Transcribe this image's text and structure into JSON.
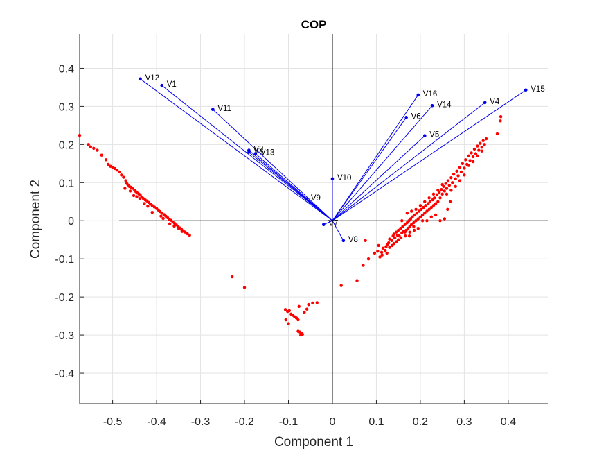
{
  "colors": {
    "vector": "#0000ee",
    "observation": "#ff0000",
    "axis": "#262626",
    "grid": "#e3e3e3",
    "zero_line": "#000000"
  },
  "chart_data": {
    "type": "scatter",
    "title": "COP",
    "xlabel": "Component 1",
    "ylabel": "Component 2",
    "xlim": [
      -0.575,
      0.49
    ],
    "ylim": [
      -0.48,
      0.49
    ],
    "grid": true,
    "xticks": [
      -0.5,
      -0.4,
      -0.3,
      -0.2,
      -0.1,
      0,
      0.1,
      0.2,
      0.3,
      0.4
    ],
    "xtick_labels": [
      "-0.5",
      "-0.4",
      "-0.3",
      "-0.2",
      "-0.1",
      "0",
      "0.1",
      "0.2",
      "0.3",
      "0.4"
    ],
    "yticks": [
      0.4,
      0.3,
      0.2,
      0.1,
      0,
      -0.1,
      -0.2,
      -0.3,
      -0.4
    ],
    "ytick_labels": [
      "0.4",
      "0.3",
      "0.2",
      "0.1",
      "0",
      "-0.1",
      "-0.2",
      "-0.3",
      "-0.4"
    ],
    "vectors": [
      {
        "name": "V1",
        "x": -0.388,
        "y": 0.355
      },
      {
        "name": "V2",
        "x": -0.19,
        "y": 0.185
      },
      {
        "name": "V3",
        "x": -0.19,
        "y": 0.18
      },
      {
        "name": "V4",
        "x": 0.347,
        "y": 0.31
      },
      {
        "name": "V5",
        "x": 0.21,
        "y": 0.223
      },
      {
        "name": "V6",
        "x": 0.168,
        "y": 0.271
      },
      {
        "name": "V7",
        "x": -0.02,
        "y": -0.01
      },
      {
        "name": "V8",
        "x": 0.025,
        "y": -0.052
      },
      {
        "name": "V9",
        "x": -0.06,
        "y": 0.057
      },
      {
        "name": "V10",
        "x": 0.0,
        "y": 0.11
      },
      {
        "name": "V11",
        "x": -0.272,
        "y": 0.292
      },
      {
        "name": "V12",
        "x": -0.437,
        "y": 0.372
      },
      {
        "name": "V13",
        "x": -0.175,
        "y": 0.176
      },
      {
        "name": "V14",
        "x": 0.227,
        "y": 0.302
      },
      {
        "name": "V15",
        "x": 0.44,
        "y": 0.343
      },
      {
        "name": "V16",
        "x": 0.195,
        "y": 0.33
      }
    ],
    "observations": [
      [
        -0.575,
        0.224
      ],
      [
        -0.555,
        0.2
      ],
      [
        -0.55,
        0.194
      ],
      [
        -0.543,
        0.19
      ],
      [
        -0.535,
        0.185
      ],
      [
        -0.525,
        0.172
      ],
      [
        -0.515,
        0.16
      ],
      [
        -0.51,
        0.148
      ],
      [
        -0.505,
        0.143
      ],
      [
        -0.5,
        0.14
      ],
      [
        -0.495,
        0.137
      ],
      [
        -0.49,
        0.133
      ],
      [
        -0.485,
        0.128
      ],
      [
        -0.48,
        0.12
      ],
      [
        -0.475,
        0.114
      ],
      [
        -0.47,
        0.105
      ],
      [
        -0.468,
        0.098
      ],
      [
        -0.465,
        0.094
      ],
      [
        -0.462,
        0.09
      ],
      [
        -0.458,
        0.088
      ],
      [
        -0.455,
        0.085
      ],
      [
        -0.45,
        0.08
      ],
      [
        -0.447,
        0.076
      ],
      [
        -0.444,
        0.073
      ],
      [
        -0.44,
        0.07
      ],
      [
        -0.437,
        0.067
      ],
      [
        -0.433,
        0.062
      ],
      [
        -0.43,
        0.058
      ],
      [
        -0.426,
        0.055
      ],
      [
        -0.422,
        0.052
      ],
      [
        -0.418,
        0.048
      ],
      [
        -0.414,
        0.044
      ],
      [
        -0.41,
        0.04
      ],
      [
        -0.405,
        0.036
      ],
      [
        -0.4,
        0.032
      ],
      [
        -0.396,
        0.028
      ],
      [
        -0.392,
        0.024
      ],
      [
        -0.388,
        0.02
      ],
      [
        -0.383,
        0.016
      ],
      [
        -0.379,
        0.012
      ],
      [
        -0.375,
        0.008
      ],
      [
        -0.371,
        0.004
      ],
      [
        -0.367,
        0.001
      ],
      [
        -0.363,
        -0.003
      ],
      [
        -0.359,
        -0.007
      ],
      [
        -0.355,
        -0.011
      ],
      [
        -0.351,
        -0.015
      ],
      [
        -0.347,
        -0.019
      ],
      [
        -0.343,
        -0.023
      ],
      [
        -0.339,
        -0.027
      ],
      [
        -0.335,
        -0.03
      ],
      [
        -0.33,
        -0.034
      ],
      [
        -0.325,
        -0.038
      ],
      [
        -0.472,
        0.085
      ],
      [
        -0.46,
        0.078
      ],
      [
        -0.452,
        0.066
      ],
      [
        -0.445,
        0.063
      ],
      [
        -0.438,
        0.058
      ],
      [
        -0.428,
        0.045
      ],
      [
        -0.42,
        0.038
      ],
      [
        -0.41,
        0.022
      ],
      [
        -0.39,
        0.012
      ],
      [
        -0.385,
        0.006
      ],
      [
        -0.37,
        -0.008
      ],
      [
        -0.36,
        -0.014
      ],
      [
        -0.35,
        -0.02
      ],
      [
        -0.342,
        -0.028
      ],
      [
        -0.228,
        -0.147
      ],
      [
        -0.2,
        -0.175
      ],
      [
        -0.107,
        -0.233
      ],
      [
        -0.102,
        -0.238
      ],
      [
        -0.098,
        -0.236
      ],
      [
        -0.094,
        -0.245
      ],
      [
        -0.09,
        -0.248
      ],
      [
        -0.086,
        -0.252
      ],
      [
        -0.082,
        -0.255
      ],
      [
        -0.078,
        -0.26
      ],
      [
        -0.106,
        -0.26
      ],
      [
        -0.1,
        -0.27
      ],
      [
        -0.064,
        -0.24
      ],
      [
        -0.058,
        -0.232
      ],
      [
        -0.054,
        -0.22
      ],
      [
        -0.045,
        -0.216
      ],
      [
        -0.035,
        -0.215
      ],
      [
        -0.078,
        -0.29
      ],
      [
        -0.074,
        -0.292
      ],
      [
        -0.07,
        -0.296
      ],
      [
        -0.072,
        -0.3
      ],
      [
        -0.068,
        -0.298
      ],
      [
        -0.076,
        -0.225
      ],
      [
        0.02,
        -0.17
      ],
      [
        0.056,
        -0.157
      ],
      [
        0.07,
        -0.117
      ],
      [
        0.082,
        -0.1
      ],
      [
        0.075,
        -0.052
      ],
      [
        0.096,
        -0.085
      ],
      [
        0.105,
        -0.065
      ],
      [
        0.112,
        -0.083
      ],
      [
        0.113,
        -0.09
      ],
      [
        0.12,
        -0.078
      ],
      [
        0.122,
        -0.068
      ],
      [
        0.125,
        -0.062
      ],
      [
        0.128,
        -0.058
      ],
      [
        0.13,
        -0.048
      ],
      [
        0.135,
        -0.052
      ],
      [
        0.138,
        -0.04
      ],
      [
        0.14,
        -0.035
      ],
      [
        0.142,
        -0.045
      ],
      [
        0.145,
        -0.03
      ],
      [
        0.148,
        -0.038
      ],
      [
        0.15,
        -0.025
      ],
      [
        0.152,
        -0.04
      ],
      [
        0.155,
        -0.02
      ],
      [
        0.158,
        -0.032
      ],
      [
        0.16,
        -0.015
      ],
      [
        0.162,
        -0.028
      ],
      [
        0.165,
        -0.01
      ],
      [
        0.168,
        -0.025
      ],
      [
        0.17,
        -0.005
      ],
      [
        0.172,
        -0.02
      ],
      [
        0.174,
        0.0
      ],
      [
        0.176,
        -0.015
      ],
      [
        0.178,
        0.005
      ],
      [
        0.18,
        -0.01
      ],
      [
        0.182,
        0.01
      ],
      [
        0.185,
        -0.005
      ],
      [
        0.187,
        0.015
      ],
      [
        0.19,
        0.0
      ],
      [
        0.192,
        0.02
      ],
      [
        0.195,
        0.005
      ],
      [
        0.197,
        0.025
      ],
      [
        0.2,
        0.01
      ],
      [
        0.202,
        0.03
      ],
      [
        0.205,
        0.015
      ],
      [
        0.207,
        0.035
      ],
      [
        0.21,
        0.02
      ],
      [
        0.212,
        0.04
      ],
      [
        0.215,
        0.025
      ],
      [
        0.218,
        0.045
      ],
      [
        0.22,
        0.03
      ],
      [
        0.222,
        0.05
      ],
      [
        0.225,
        0.035
      ],
      [
        0.228,
        0.055
      ],
      [
        0.23,
        0.04
      ],
      [
        0.232,
        0.06
      ],
      [
        0.235,
        0.045
      ],
      [
        0.238,
        0.068
      ],
      [
        0.24,
        0.05
      ],
      [
        0.243,
        0.075
      ],
      [
        0.245,
        0.06
      ],
      [
        0.248,
        0.082
      ],
      [
        0.25,
        0.07
      ],
      [
        0.253,
        0.09
      ],
      [
        0.255,
        0.078
      ],
      [
        0.258,
        0.098
      ],
      [
        0.26,
        0.085
      ],
      [
        0.263,
        0.105
      ],
      [
        0.266,
        0.093
      ],
      [
        0.27,
        0.113
      ],
      [
        0.273,
        0.1
      ],
      [
        0.276,
        0.122
      ],
      [
        0.28,
        0.11
      ],
      [
        0.283,
        0.13
      ],
      [
        0.286,
        0.118
      ],
      [
        0.29,
        0.14
      ],
      [
        0.293,
        0.128
      ],
      [
        0.296,
        0.15
      ],
      [
        0.3,
        0.138
      ],
      [
        0.303,
        0.16
      ],
      [
        0.306,
        0.148
      ],
      [
        0.31,
        0.17
      ],
      [
        0.313,
        0.158
      ],
      [
        0.316,
        0.178
      ],
      [
        0.32,
        0.168
      ],
      [
        0.323,
        0.188
      ],
      [
        0.326,
        0.176
      ],
      [
        0.33,
        0.196
      ],
      [
        0.333,
        0.185
      ],
      [
        0.336,
        0.203
      ],
      [
        0.34,
        0.193
      ],
      [
        0.343,
        0.21
      ],
      [
        0.346,
        0.2
      ],
      [
        0.35,
        0.215
      ],
      [
        0.158,
        0.0
      ],
      [
        0.165,
        -0.03
      ],
      [
        0.175,
        -0.04
      ],
      [
        0.185,
        -0.015
      ],
      [
        0.195,
        -0.02
      ],
      [
        0.205,
        0.0
      ],
      [
        0.215,
        0.0
      ],
      [
        0.225,
        0.01
      ],
      [
        0.14,
        -0.06
      ],
      [
        0.13,
        -0.07
      ],
      [
        0.15,
        -0.05
      ],
      [
        0.17,
        0.02
      ],
      [
        0.18,
        0.025
      ],
      [
        0.19,
        0.03
      ],
      [
        0.2,
        0.04
      ],
      [
        0.21,
        0.05
      ],
      [
        0.22,
        0.06
      ],
      [
        0.23,
        0.07
      ],
      [
        0.24,
        0.08
      ],
      [
        0.25,
        0.095
      ],
      [
        0.26,
        0.07
      ],
      [
        0.27,
        0.08
      ],
      [
        0.28,
        0.09
      ],
      [
        0.29,
        0.105
      ],
      [
        0.3,
        0.12
      ],
      [
        0.31,
        0.145
      ],
      [
        0.32,
        0.155
      ],
      [
        0.33,
        0.17
      ],
      [
        0.34,
        0.183
      ],
      [
        0.375,
        0.228
      ],
      [
        0.382,
        0.262
      ],
      [
        0.383,
        0.273
      ],
      [
        0.255,
        0.005
      ],
      [
        0.262,
        0.03
      ],
      [
        0.268,
        0.05
      ],
      [
        0.245,
        0.0
      ],
      [
        0.235,
        0.015
      ],
      [
        0.115,
        -0.072
      ],
      [
        0.108,
        -0.095
      ],
      [
        0.103,
        -0.08
      ],
      [
        0.124,
        -0.085
      ],
      [
        0.136,
        -0.065
      ],
      [
        0.146,
        -0.055
      ],
      [
        0.156,
        -0.045
      ],
      [
        0.166,
        -0.04
      ],
      [
        0.176,
        -0.03
      ],
      [
        0.186,
        -0.025
      ]
    ]
  }
}
